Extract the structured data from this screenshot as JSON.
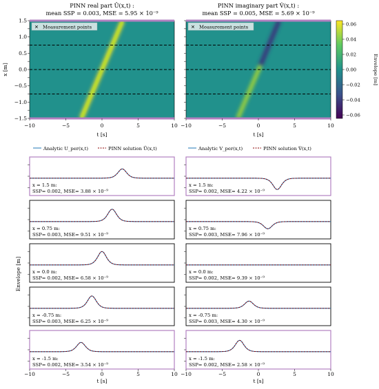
{
  "heatmaps": [
    {
      "title_line1": "PINN real part Û(x,t) :",
      "title_line2": "mean SSP = 0.003, MSE = 5.95 × 10⁻⁹",
      "legend": "Measurement points",
      "ylabel": "x [m]",
      "xlabel": "t [s]"
    },
    {
      "title_line1": "PINN imaginary part V̂(x,t) :",
      "title_line2": "mean SSP = 0.005, MSE = 5.69 × 10⁻⁹",
      "legend": "Measurement points",
      "xlabel": "t [s]"
    }
  ],
  "colorbar": {
    "label": "Envelope [m]",
    "ticks": [
      "0.06",
      "0.04",
      "0.02",
      "0.00",
      "−0.02",
      "−0.04",
      "−0.06"
    ]
  },
  "line_legend_left": {
    "analytic": "Analytic U_per(x,t)",
    "pinn": "PINN solution Û(x,t)"
  },
  "line_legend_right": {
    "analytic": "Analytic V_per(x,t)",
    "pinn": "PINN solution V̂(x,t)"
  },
  "envelope_label": "Envelope [m]",
  "xlabel": "t [s]",
  "colors": {
    "analytic": "#1f77b4",
    "pinn": "#8b0000",
    "frame_purple": "#b280c0"
  },
  "chart_data": {
    "type": "line",
    "x_range": [
      -10,
      10
    ],
    "x_ticks": [
      -10,
      -5,
      0,
      5,
      10
    ],
    "y_ticks_heatmap": [
      1.5,
      1.25,
      1.0,
      0.75,
      0.5,
      0.25,
      0.0,
      -0.25,
      -0.5,
      -0.75,
      -1.0,
      -1.25,
      -1.5
    ],
    "measurement_points_x": [
      1.5,
      0.75,
      0.0,
      -0.75,
      -1.5
    ],
    "panels_left": [
      {
        "label": "x = 1.5 m:",
        "stats": "SSP= 0.002, MSE= 3.88 × 10⁻⁹",
        "peak_t": 2.8,
        "amplitude": 0.045,
        "sign": 1
      },
      {
        "label": "x = 0.75 m:",
        "stats": "SSP= 0.003, MSE= 9.51 × 10⁻⁹",
        "peak_t": 1.4,
        "amplitude": 0.06,
        "sign": 1
      },
      {
        "label": "x = 0.0 m:",
        "stats": "SSP= 0.002, MSE= 6.58 × 10⁻⁹",
        "peak_t": 0.0,
        "amplitude": 0.065,
        "sign": 1
      },
      {
        "label": "x = -0.75 m:",
        "stats": "SSP= 0.003, MSE= 6.25 × 10⁻⁹",
        "peak_t": -1.4,
        "amplitude": 0.06,
        "sign": 1
      },
      {
        "label": "x = -1.5 m:",
        "stats": "SSP= 0.002, MSE= 3.54 × 10⁻⁹",
        "peak_t": -2.9,
        "amplitude": 0.045,
        "sign": 1
      }
    ],
    "panels_right": [
      {
        "label": "x = 1.5 m:",
        "stats": "SSP= 0.002, MSE= 4.22 × 10⁻⁹",
        "peak_t": 2.6,
        "amplitude": 0.055,
        "sign": -1
      },
      {
        "label": "x = 0.75 m:",
        "stats": "SSP= 0.003, MSE= 7.96 × 10⁻⁹",
        "peak_t": 1.3,
        "amplitude": 0.035,
        "sign": -1
      },
      {
        "label": "x = 0.0 m:",
        "stats": "SSP= 0.002, MSE= 9.39 × 10⁻⁹",
        "peak_t": 0.0,
        "amplitude": 0.0,
        "sign": 1
      },
      {
        "label": "x = -0.75 m:",
        "stats": "SSP= 0.003, MSE= 4.30 × 10⁻⁹",
        "peak_t": -1.3,
        "amplitude": 0.035,
        "sign": 1
      },
      {
        "label": "x = -1.5 m:",
        "stats": "SSP= 0.002, MSE= 2.58 × 10⁻⁹",
        "peak_t": -2.6,
        "amplitude": 0.055,
        "sign": 1
      }
    ]
  }
}
